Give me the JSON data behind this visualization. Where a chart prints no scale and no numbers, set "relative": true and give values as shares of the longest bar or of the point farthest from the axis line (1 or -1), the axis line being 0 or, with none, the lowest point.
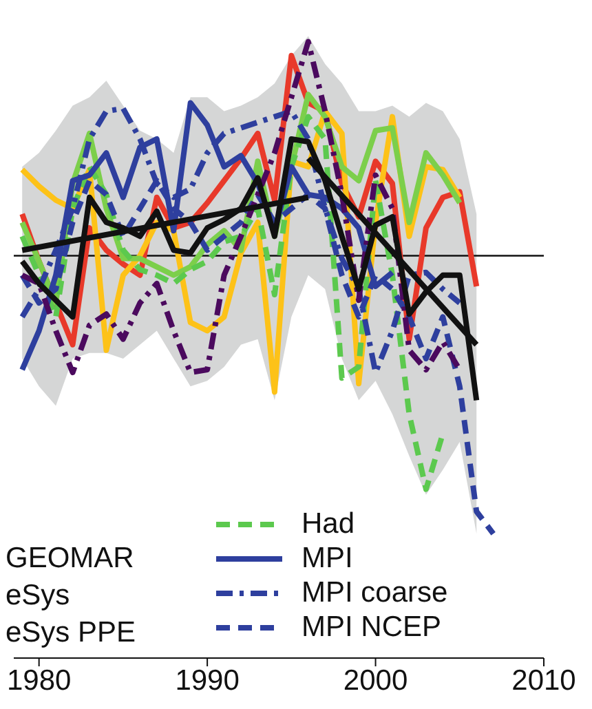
{
  "chart_data": {
    "type": "line",
    "relative": true,
    "xlim": [
      1978.5,
      2010
    ],
    "xticks": [
      1980,
      1990,
      2000,
      2010
    ],
    "legend": "bottom",
    "annotations": [
      "GEOMAR",
      "eSys",
      "eSys PPE"
    ],
    "series": [
      {
        "color": "#e8392a",
        "line_style": "solid",
        "x": [
          1979,
          1980,
          1981,
          1982,
          1983,
          1984,
          1985,
          1986,
          1987,
          1988,
          1989,
          1990,
          1991,
          1992,
          1993,
          1994,
          1995,
          1996,
          1997,
          1998,
          1999,
          2000,
          2001,
          2002,
          2003,
          2004,
          2005,
          2006
        ],
        "values": [
          0.15,
          -0.02,
          -0.17,
          -0.32,
          0.1,
          0.02,
          -0.03,
          -0.07,
          0.21,
          0.1,
          0.12,
          0.19,
          0.27,
          0.35,
          0.44,
          0.2,
          0.72,
          0.55,
          0.52,
          0.26,
          0.14,
          0.34,
          0.26,
          -0.3,
          0.1,
          0.21,
          0.23,
          -0.11
        ]
      },
      {
        "color": "#fdc218",
        "line_style": "solid",
        "x": [
          1979,
          1980,
          1981,
          1982,
          1983,
          1984,
          1985,
          1986,
          1987,
          1988,
          1989,
          1990,
          1991,
          1992,
          1993,
          1994,
          1995,
          1996,
          1997,
          1998,
          1999,
          2000,
          2001,
          2002,
          2003,
          2004,
          2005
        ],
        "values": [
          0.31,
          0.25,
          0.2,
          0.17,
          0.31,
          -0.34,
          -0.07,
          0,
          0.12,
          0.09,
          -0.24,
          -0.27,
          -0.22,
          0.01,
          0.12,
          -0.49,
          0.34,
          0.32,
          0.52,
          0.44,
          -0.46,
          0.12,
          0.5,
          0.07,
          0.32,
          0.31,
          0.21
        ]
      },
      {
        "color": "#7ccf4b",
        "line_style": "solid",
        "x": [
          1979,
          1980,
          1981,
          1982,
          1983,
          1984,
          1985,
          1986,
          1987,
          1988,
          1989,
          1990,
          1991,
          1992,
          1993,
          1994,
          1995,
          1996,
          1997,
          1998,
          1999,
          2000,
          2001,
          2002,
          2003,
          2004,
          2005
        ],
        "values": [
          0.12,
          -0.02,
          -0.17,
          0.26,
          0.44,
          0.17,
          -0.01,
          -0.01,
          -0.04,
          -0.07,
          -0.04,
          0.04,
          0.09,
          0.02,
          0.34,
          0.07,
          0.32,
          0.58,
          0.5,
          0.32,
          0.27,
          0.45,
          0.46,
          0.12,
          0.37,
          0.29,
          0.19
        ]
      },
      {
        "name": "Had",
        "color": "#5cc94e",
        "line_style": "dashed",
        "x": [
          1979,
          1980,
          1981,
          1982,
          1983,
          1984,
          1985,
          1986,
          1987,
          1988,
          1989,
          1990,
          1991,
          1992,
          1993,
          1994,
          1995,
          1996,
          1997,
          1998,
          1999,
          2000,
          2001,
          2002,
          2003,
          2004
        ],
        "values": [
          0.07,
          -0.07,
          -0.22,
          0.17,
          0.32,
          0.22,
          0.02,
          -0.05,
          -0.07,
          -0.1,
          -0.05,
          -0.02,
          0.05,
          0.07,
          0.17,
          -0.14,
          0.32,
          0.5,
          0.42,
          -0.44,
          -0.4,
          0.27,
          -0.07,
          -0.57,
          -0.84,
          -0.64
        ]
      },
      {
        "name": "MPI",
        "color": "#2e3f9e",
        "line_style": "solid",
        "x": [
          1979,
          1980,
          1981,
          1982,
          1983,
          1984,
          1985,
          1986,
          1987,
          1988,
          1989,
          1990,
          1991,
          1992,
          1993,
          1994,
          1995,
          1996,
          1997,
          1998,
          1999,
          2000,
          2001
        ],
        "values": [
          -0.41,
          -0.27,
          -0.07,
          0.27,
          0.29,
          0.37,
          0.21,
          0.39,
          0.42,
          0.09,
          0.55,
          0.47,
          0.32,
          0.36,
          0.26,
          0.09,
          0.32,
          0.22,
          0.21,
          0.17,
          0.1,
          -0.11,
          -0.06
        ]
      },
      {
        "name": "MPI coarse",
        "color": "#2e3f9e",
        "line_style": "dotted",
        "x": [
          1979,
          1980,
          1981,
          1982,
          1983,
          1984,
          1985,
          1986,
          1987,
          1988,
          1989,
          1990,
          1991,
          1992,
          1993,
          1994,
          1995,
          1996,
          1997,
          1998,
          1999,
          2000,
          2001,
          2002,
          2003,
          2004,
          2005
        ],
        "values": [
          -0.22,
          -0.12,
          0.02,
          0.17,
          0.42,
          0.52,
          0.53,
          0.42,
          0.26,
          0.21,
          0.24,
          0.37,
          0.44,
          0.46,
          0.48,
          0.5,
          0.52,
          0.42,
          0.17,
          -0.01,
          -0.12,
          -0.42,
          -0.27,
          -0.07,
          -0.06,
          -0.12,
          -0.17
        ]
      },
      {
        "name": "MPI NCEP",
        "color": "#2e3f9e",
        "line_style": "dashed",
        "x": [
          1979,
          1980,
          1981,
          1982,
          1983,
          1984,
          1985,
          1986,
          1987,
          1988,
          1989,
          1990,
          1991,
          1992,
          1993,
          1994,
          1995,
          1996,
          1997,
          1998,
          1999,
          2000,
          2001,
          2002,
          2003,
          2004,
          2005,
          2006,
          2007
        ],
        "values": [
          -0.07,
          -0.17,
          -0.12,
          0.12,
          0.27,
          0.22,
          0.07,
          0.17,
          0.27,
          0.17,
          0.12,
          0.02,
          0.07,
          0.12,
          0.22,
          0.12,
          0.17,
          0.22,
          0.17,
          -0.07,
          -0.22,
          -0.07,
          -0.12,
          -0.22,
          -0.37,
          -0.22,
          -0.47,
          -0.92,
          -1.0
        ]
      },
      {
        "color": "#4b0a5e",
        "line_style": "dotted",
        "x": [
          1979,
          1980,
          1981,
          1982,
          1983,
          1984,
          1985,
          1986,
          1987,
          1988,
          1989,
          1990,
          1991,
          1992,
          1993,
          1994,
          1995,
          1996,
          1997,
          1998,
          1999,
          2000,
          2001,
          2002,
          2003,
          2004,
          2005
        ],
        "values": [
          -0.07,
          -0.1,
          -0.27,
          -0.42,
          -0.25,
          -0.21,
          -0.3,
          -0.17,
          -0.1,
          -0.27,
          -0.42,
          -0.41,
          -0.07,
          0.07,
          0.22,
          0.37,
          0.57,
          0.77,
          0.52,
          0.22,
          -0.16,
          0.29,
          0.17,
          -0.34,
          -0.41,
          -0.31,
          -0.41
        ]
      },
      {
        "color": "#111111",
        "line_style": "solid",
        "x": [
          1979,
          1980,
          1981,
          1982,
          1983,
          1984,
          1985,
          1986,
          1987,
          1988,
          1989,
          1990,
          1991,
          1992,
          1993,
          1994,
          1995,
          1996,
          1997,
          1998,
          1999,
          2000,
          2001,
          2002,
          2003,
          2004,
          2005,
          2006
        ],
        "values": [
          -0.02,
          -0.1,
          -0.16,
          -0.22,
          0.21,
          0.12,
          0.1,
          0.07,
          0.16,
          0.02,
          0.01,
          0.1,
          0.13,
          0.17,
          0.28,
          0.07,
          0.42,
          0.41,
          0.27,
          0.07,
          -0.12,
          0.11,
          0.14,
          -0.21,
          -0.13,
          -0.07,
          -0.07,
          -0.52
        ],
        "lower": [
          -0.37,
          -0.47,
          -0.54,
          -0.37,
          -0.35,
          -0.35,
          -0.37,
          -0.32,
          -0.27,
          -0.37,
          -0.47,
          -0.45,
          -0.4,
          -0.32,
          -0.3,
          -0.52,
          -0.22,
          -0.07,
          -0.12,
          -0.37,
          -0.52,
          -0.45,
          -0.57,
          -0.72,
          -0.86,
          -0.77,
          -0.67,
          -1.0
        ],
        "upper": [
          0.32,
          0.37,
          0.45,
          0.54,
          0.57,
          0.63,
          0.54,
          0.45,
          0.42,
          0.37,
          0.57,
          0.57,
          0.52,
          0.54,
          0.57,
          0.62,
          0.72,
          0.79,
          0.69,
          0.62,
          0.52,
          0.52,
          0.54,
          0.5,
          0.55,
          0.52,
          0.42,
          0.15
        ]
      },
      {
        "color": "#111111",
        "line_style": "solid",
        "x": [
          1979,
          1996
        ],
        "values": [
          0.02,
          0.21
        ]
      },
      {
        "color": "#111111",
        "line_style": "solid",
        "x": [
          1996,
          2006
        ],
        "values": [
          0.35,
          -0.32
        ]
      }
    ]
  }
}
